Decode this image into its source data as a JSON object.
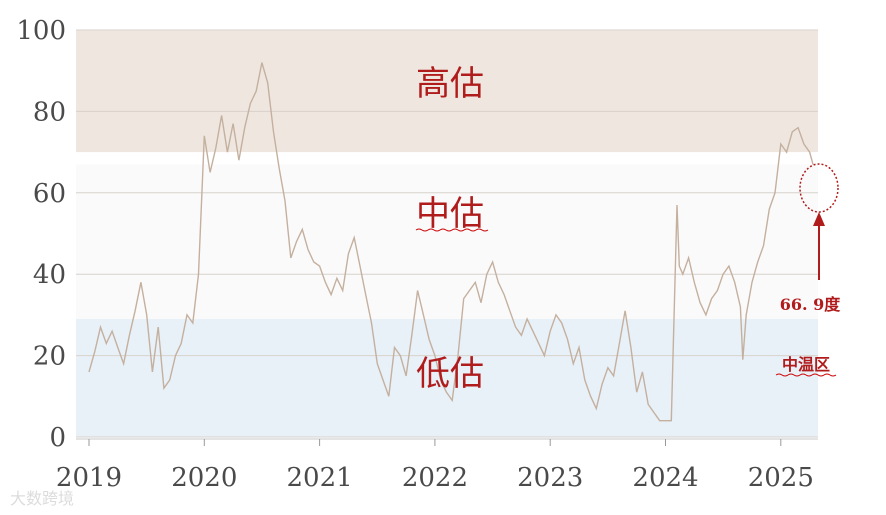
{
  "chart_data": {
    "type": "line",
    "title": "",
    "xlabel": "",
    "ylabel": "",
    "ylim": [
      0,
      100
    ],
    "xlim": [
      2019.0,
      2025.33
    ],
    "y_ticks": [
      "0",
      "20",
      "40",
      "60",
      "80",
      "100"
    ],
    "x_ticks": [
      "2019",
      "2020",
      "2021",
      "2022",
      "2023",
      "2024",
      "2025"
    ],
    "grid": true,
    "line_color": "#c4b09f",
    "bands": [
      {
        "label": "高估",
        "from": 70,
        "to": 100,
        "color": "#efe7df"
      },
      {
        "label": "中估",
        "from": 29,
        "to": 67,
        "color": "#fbfafa"
      },
      {
        "label": "低估",
        "from": 0,
        "to": 29,
        "color": "#e8f0f8"
      }
    ],
    "series": [
      {
        "x": [
          2019.0,
          2019.05,
          2019.1,
          2019.15,
          2019.2,
          2019.25,
          2019.3,
          2019.35,
          2019.4,
          2019.45,
          2019.5,
          2019.55,
          2019.6,
          2019.65,
          2019.7,
          2019.75,
          2019.8,
          2019.85,
          2019.9,
          2019.95,
          2020.0,
          2020.05,
          2020.1,
          2020.15,
          2020.2,
          2020.25,
          2020.3,
          2020.35,
          2020.4,
          2020.45,
          2020.5,
          2020.55,
          2020.6,
          2020.65,
          2020.7,
          2020.75,
          2020.8,
          2020.85,
          2020.9,
          2020.95,
          2021.0,
          2021.05,
          2021.1,
          2021.15,
          2021.2,
          2021.25,
          2021.3,
          2021.35,
          2021.4,
          2021.45,
          2021.5,
          2021.55,
          2021.6,
          2021.65,
          2021.7,
          2021.75,
          2021.8,
          2021.85,
          2021.9,
          2021.95,
          2022.0,
          2022.05,
          2022.1,
          2022.15,
          2022.2,
          2022.25,
          2022.3,
          2022.35,
          2022.4,
          2022.45,
          2022.5,
          2022.55,
          2022.6,
          2022.65,
          2022.7,
          2022.75,
          2022.8,
          2022.85,
          2022.9,
          2022.95,
          2023.0,
          2023.05,
          2023.1,
          2023.15,
          2023.2,
          2023.25,
          2023.3,
          2023.35,
          2023.4,
          2023.45,
          2023.5,
          2023.55,
          2023.6,
          2023.65,
          2023.7,
          2023.75,
          2023.8,
          2023.85,
          2023.9,
          2023.95,
          2024.0,
          2024.05,
          2024.1,
          2024.12,
          2024.15,
          2024.2,
          2024.25,
          2024.3,
          2024.35,
          2024.4,
          2024.45,
          2024.5,
          2024.55,
          2024.6,
          2024.65,
          2024.67,
          2024.7,
          2024.75,
          2024.8,
          2024.85,
          2024.9,
          2024.95,
          2025.0,
          2025.05,
          2025.1,
          2025.15,
          2025.2,
          2025.25,
          2025.28
        ],
        "values": [
          16,
          21,
          27,
          23,
          26,
          22,
          18,
          25,
          31,
          38,
          30,
          16,
          27,
          12,
          14,
          20,
          23,
          30,
          28,
          40,
          74,
          65,
          71,
          79,
          70,
          77,
          68,
          76,
          82,
          85,
          92,
          87,
          75,
          66,
          58,
          44,
          48,
          51,
          46,
          43,
          42,
          38,
          35,
          39,
          36,
          45,
          49,
          42,
          35,
          28,
          18,
          14,
          10,
          22,
          20,
          15,
          25,
          36,
          30,
          24,
          20,
          14,
          11,
          9,
          20,
          34,
          36,
          38,
          33,
          40,
          43,
          38,
          35,
          31,
          27,
          25,
          29,
          26,
          23,
          20,
          26,
          30,
          28,
          24,
          18,
          22,
          14,
          10,
          7,
          13,
          17,
          15,
          23,
          31,
          22,
          11,
          16,
          8,
          6,
          4,
          4,
          4,
          57,
          42,
          40,
          44,
          38,
          33,
          30,
          34,
          36,
          40,
          42,
          38,
          32,
          19,
          30,
          38,
          43,
          47,
          56,
          60,
          72,
          70,
          75,
          76,
          72,
          70,
          66.9
        ]
      }
    ],
    "annotations": {
      "zone_high": "高估",
      "zone_mid": "中估",
      "zone_low": "低估",
      "current_value": "66. 9度",
      "current_zone": "中温区"
    },
    "watermark": "大数跨境"
  }
}
